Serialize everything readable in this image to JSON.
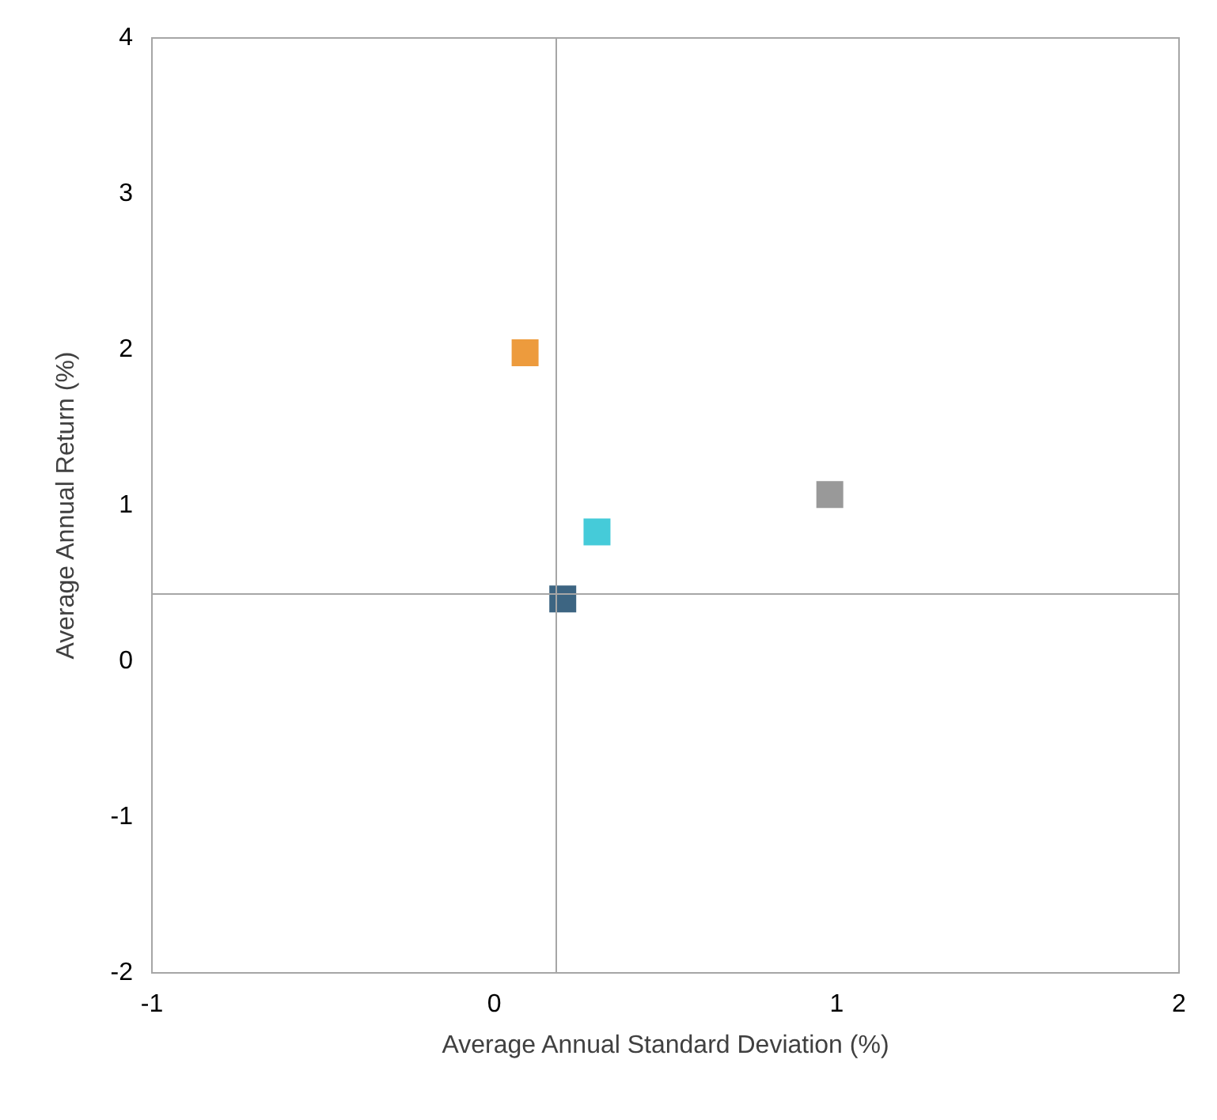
{
  "chart_data": {
    "type": "scatter",
    "xlabel": "Average Annual Standard Deviation (%)",
    "ylabel": "Average Annual Return (%)",
    "x": [
      0.09,
      0.3,
      0.2,
      0.98
    ],
    "values": [
      1.98,
      0.83,
      0.4,
      1.07
    ],
    "colors": [
      "#e8820c",
      "#17becf",
      "#0d3f63",
      "#808080"
    ],
    "xlim": [
      -1,
      2
    ],
    "xticks": [
      -1,
      0,
      1,
      2
    ],
    "ylim": [
      -2,
      4
    ],
    "yticks": [
      -2,
      -1,
      0,
      1,
      2,
      3,
      4
    ],
    "grid": false,
    "marker": "square",
    "ref_lines": [
      {
        "axis": "x",
        "value": 0.18,
        "color": "#a6a6a6"
      },
      {
        "axis": "y",
        "value": 0.43,
        "color": "#a6a6a6"
      }
    ]
  }
}
